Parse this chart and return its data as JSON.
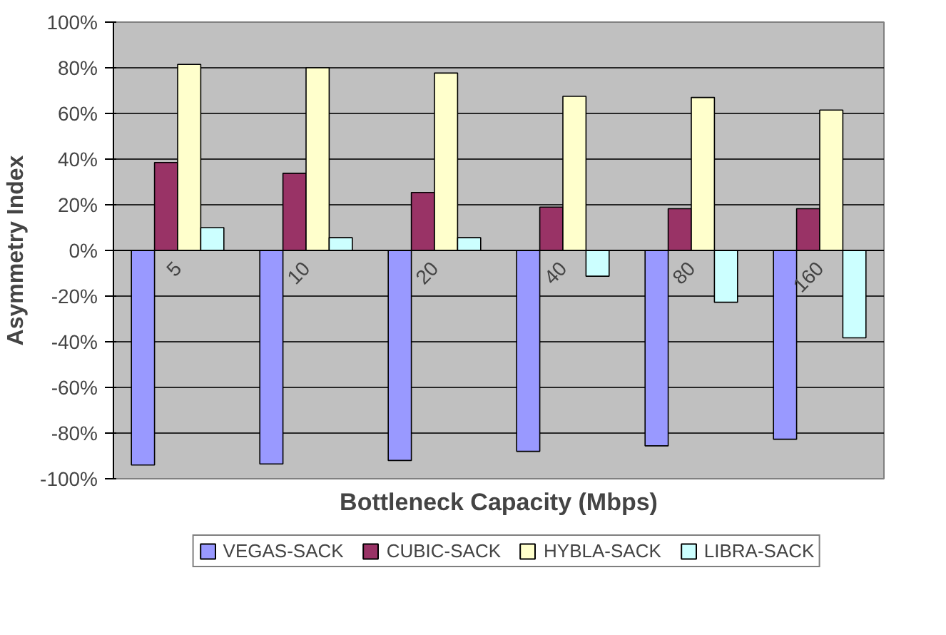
{
  "chart_data": {
    "type": "bar",
    "xlabel": "Bottleneck Capacity (Mbps)",
    "ylabel": "Asymmetry Index",
    "categories": [
      "5",
      "10",
      "20",
      "40",
      "80",
      "160"
    ],
    "series": [
      {
        "name": "VEGAS-SACK",
        "color": "#9999ff",
        "values": [
          -94,
          -93.5,
          -92,
          -88,
          -85.6,
          -82.7
        ]
      },
      {
        "name": "CUBIC-SACK",
        "color": "#993366",
        "values": [
          38.5,
          33.8,
          25.4,
          19,
          18.3,
          18.3
        ]
      },
      {
        "name": "HYBLA-SACK",
        "color": "#ffffcc",
        "values": [
          81.5,
          80,
          77.7,
          67.5,
          67,
          61.5
        ]
      },
      {
        "name": "LIBRA-SACK",
        "color": "#ccffff",
        "values": [
          10,
          5.6,
          5.6,
          -11.3,
          -22.7,
          -38.3
        ]
      }
    ],
    "ylim": [
      -100,
      100
    ],
    "yticks": [
      {
        "value": -100,
        "label": "-100%"
      },
      {
        "value": -80,
        "label": "-80%"
      },
      {
        "value": -60,
        "label": "-60%"
      },
      {
        "value": -40,
        "label": "-40%"
      },
      {
        "value": -20,
        "label": "-20%"
      },
      {
        "value": 0,
        "label": "0%"
      },
      {
        "value": 20,
        "label": "20%"
      },
      {
        "value": 40,
        "label": "40%"
      },
      {
        "value": 60,
        "label": "60%"
      },
      {
        "value": 80,
        "label": "80%"
      },
      {
        "value": 100,
        "label": "100%"
      }
    ],
    "grid": "y",
    "legend": "bottom"
  }
}
